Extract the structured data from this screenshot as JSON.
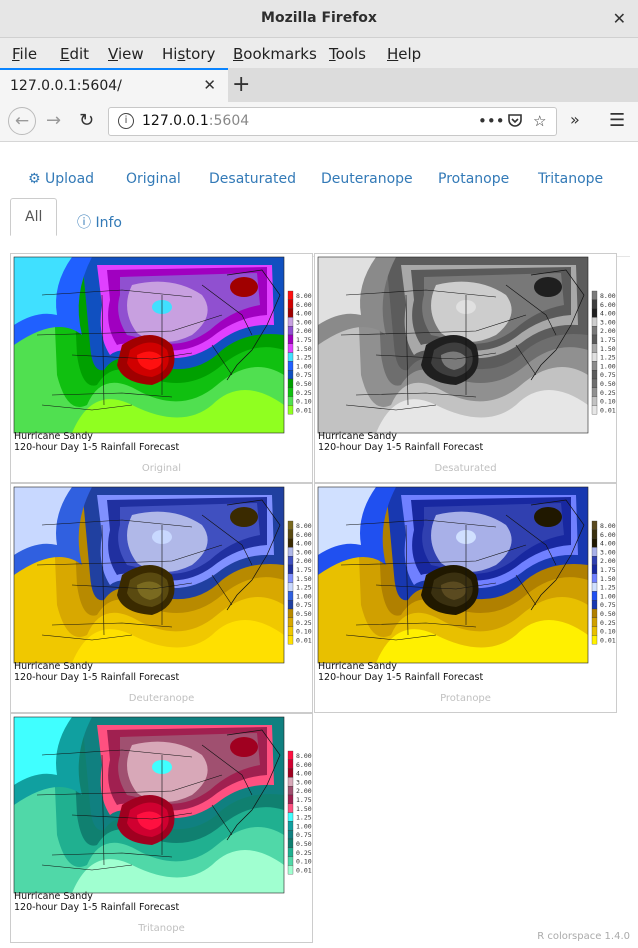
{
  "window": {
    "title": "Mozilla Firefox"
  },
  "menu": [
    {
      "pre": "",
      "key": "F",
      "post": "ile"
    },
    {
      "pre": "",
      "key": "E",
      "post": "dit"
    },
    {
      "pre": "",
      "key": "V",
      "post": "iew"
    },
    {
      "pre": "Hi",
      "key": "s",
      "post": "tory"
    },
    {
      "pre": "",
      "key": "B",
      "post": "ookmarks"
    },
    {
      "pre": "",
      "key": "T",
      "post": "ools"
    },
    {
      "pre": "",
      "key": "H",
      "post": "elp"
    }
  ],
  "tab": {
    "label": "127.0.0.1:5604/"
  },
  "address": {
    "host": "127.0.0.1",
    "port": ":5604"
  },
  "nav": {
    "upload": "Upload",
    "original": "Original",
    "desaturated": "Desaturated",
    "deuteranope": "Deuteranope",
    "protanope": "Protanope",
    "tritanope": "Tritanope",
    "all": "All",
    "info": "Info"
  },
  "map": {
    "line1": "Hurricane Sandy",
    "line2": "120-hour Day 1-5 Rainfall Forecast",
    "legend": [
      "8.00",
      "6.00",
      "4.00",
      "3.00",
      "2.00",
      "1.75",
      "1.50",
      "1.25",
      "1.00",
      "0.75",
      "0.50",
      "0.25",
      "0.10",
      "0.01"
    ]
  },
  "panels": [
    {
      "caption": "Original",
      "colors": [
        "#ff1010",
        "#d00000",
        "#a00000",
        "#c8a0e0",
        "#9050d0",
        "#a000c0",
        "#e040ff",
        "#40e0ff",
        "#2060ff",
        "#1050c0",
        "#00a000",
        "#10c010",
        "#50e050",
        "#90ff20"
      ]
    },
    {
      "caption": "Desaturated",
      "colors": [
        "#7a7a7a",
        "#3e3e3e",
        "#1f1f1f",
        "#cdcdcd",
        "#787878",
        "#5a5a5a",
        "#a8a8a8",
        "#e0e0e0",
        "#8a8a8a",
        "#5c5c5c",
        "#6e6e6e",
        "#909090",
        "#c2c2c2",
        "#e6e6e6"
      ]
    },
    {
      "caption": "Deuteranope",
      "colors": [
        "#7a6a20",
        "#5a4a10",
        "#3a2a00",
        "#b0b8e8",
        "#4050c0",
        "#2030a0",
        "#8090ff",
        "#c8d8ff",
        "#3060e0",
        "#2040a0",
        "#b88a00",
        "#d8a800",
        "#f0c800",
        "#ffe000"
      ]
    },
    {
      "caption": "Protanope",
      "colors": [
        "#5a4a20",
        "#3a3010",
        "#201800",
        "#a8b0e8",
        "#3040b0",
        "#1828a0",
        "#7080ff",
        "#d0e0ff",
        "#2050f0",
        "#1838b0",
        "#b08000",
        "#d0a000",
        "#e8c000",
        "#fff000"
      ]
    },
    {
      "caption": "Tritanope",
      "colors": [
        "#ff1040",
        "#d00030",
        "#a00020",
        "#d8a8b8",
        "#a05070",
        "#a02050",
        "#ff5080",
        "#40ffff",
        "#10a0a0",
        "#108080",
        "#108070",
        "#20b090",
        "#50d8a8",
        "#a0ffd0"
      ]
    }
  ],
  "footer": "R colorspace 1.4.0"
}
